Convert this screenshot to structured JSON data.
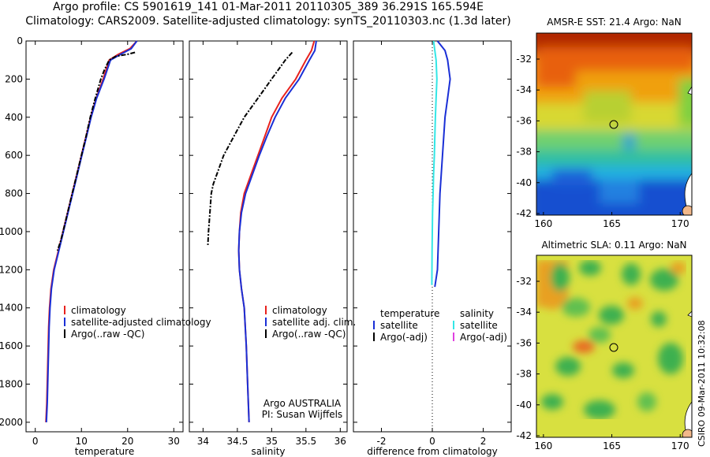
{
  "header": {
    "line1": "Argo profile: CS 5901619_141 01-Mar-2011 20110305_389 36.291S 165.594E",
    "line2": "Climatology: CARS2009. Satellite-adjusted climatology: synTS_20110303.nc (1.3d later)"
  },
  "credit": "CSIRO 09-Mar-2011 10:32:08",
  "colors": {
    "climatology": "#e8221e",
    "satellite": "#1a2fd6",
    "argo": "#000000",
    "sat_salinity": "#33e6e6",
    "argo_adj_sal": "#e040e0"
  },
  "chart_data": [
    {
      "type": "line",
      "xlabel": "temperature",
      "xticks": [
        0,
        10,
        20,
        30
      ],
      "yticks": [
        0,
        200,
        400,
        600,
        800,
        1000,
        1200,
        1400,
        1600,
        1800,
        2000
      ],
      "xlim": [
        -2,
        32
      ],
      "ylim": [
        0,
        2050
      ],
      "y_reversed": true,
      "legend": [
        "climatology",
        "satellite-adjusted climatology",
        "Argo(..raw -QC)"
      ],
      "series": [
        {
          "name": "climatology",
          "x": [
            22,
            20.5,
            18,
            16,
            14.7,
            13.2,
            12,
            11,
            10,
            9,
            7.5,
            6,
            5,
            4,
            3.4,
            3.1,
            2.9,
            2.7,
            2.5,
            2.3
          ],
          "y": [
            0,
            40,
            70,
            100,
            200,
            300,
            400,
            500,
            600,
            700,
            850,
            1000,
            1100,
            1200,
            1300,
            1400,
            1500,
            1700,
            1900,
            2000
          ]
        },
        {
          "name": "satellite-adjusted climatology",
          "x": [
            22,
            20.8,
            18.5,
            16.3,
            14.9,
            13.3,
            12.1,
            11.1,
            10.1,
            9.1,
            7.6,
            6.1,
            5.1,
            4.1,
            3.5,
            3.2,
            3.0,
            2.8,
            2.6,
            2.4
          ],
          "y": [
            0,
            40,
            70,
            100,
            200,
            300,
            400,
            500,
            600,
            700,
            850,
            1000,
            1100,
            1200,
            1300,
            1400,
            1500,
            1700,
            1900,
            2000
          ]
        },
        {
          "name": "Argo(..raw -QC)",
          "x": [
            21.6,
            20,
            17.5,
            16,
            15,
            14.2,
            13,
            11.9,
            11,
            10,
            9,
            8,
            7.5,
            6.5,
            5.5,
            4.8
          ],
          "y": [
            60,
            70,
            80,
            100,
            150,
            200,
            300,
            400,
            500,
            600,
            700,
            800,
            850,
            950,
            1050,
            1100
          ]
        }
      ]
    },
    {
      "type": "line",
      "xlabel": "salinity",
      "xticks": [
        34,
        34.5,
        35,
        35.5,
        36
      ],
      "xlim": [
        33.8,
        36.1
      ],
      "ylim": [
        0,
        2050
      ],
      "y_reversed": true,
      "legend": [
        "climatology",
        "satellite adj. clim.",
        "Argo(..raw -QC)"
      ],
      "annotation": [
        "Argo AUSTRALIA",
        "PI: Susan Wijffels"
      ],
      "series": [
        {
          "name": "climatology",
          "x": [
            35.62,
            35.58,
            35.5,
            35.35,
            35.15,
            35.0,
            34.9,
            34.8,
            34.7,
            34.6,
            34.55,
            34.53,
            34.52,
            34.53,
            34.56,
            34.6,
            34.63,
            34.65,
            34.67
          ],
          "y": [
            0,
            50,
            100,
            200,
            300,
            400,
            500,
            600,
            700,
            800,
            900,
            1000,
            1100,
            1200,
            1300,
            1400,
            1600,
            1800,
            2000
          ]
        },
        {
          "name": "satellite adj. clim.",
          "x": [
            35.65,
            35.63,
            35.55,
            35.4,
            35.2,
            35.05,
            34.93,
            34.82,
            34.72,
            34.62,
            34.56,
            34.53,
            34.52,
            34.53,
            34.56,
            34.6,
            34.63,
            34.65,
            34.67
          ],
          "y": [
            0,
            50,
            100,
            200,
            300,
            400,
            500,
            600,
            700,
            800,
            900,
            1000,
            1100,
            1200,
            1300,
            1400,
            1600,
            1800,
            2000
          ]
        },
        {
          "name": "Argo(..raw -QC)",
          "x": [
            35.3,
            35.2,
            35.0,
            34.8,
            34.6,
            34.45,
            34.3,
            34.2,
            34.15,
            34.12,
            34.1,
            34.08,
            34.07
          ],
          "y": [
            60,
            100,
            200,
            300,
            400,
            500,
            600,
            700,
            750,
            800,
            900,
            1000,
            1070
          ]
        }
      ]
    },
    {
      "type": "line",
      "xlabel": "difference from climatology",
      "xticks": [
        -2,
        0,
        2
      ],
      "xlim": [
        -3.1,
        3.1
      ],
      "ylim": [
        0,
        2050
      ],
      "y_reversed": true,
      "legend_temperature": [
        "temperature",
        "satellite",
        "Argo(-adj)"
      ],
      "legend_salinity": [
        "salinity",
        "satellite",
        "Argo(-adj)"
      ],
      "series": [
        {
          "name": "satellite",
          "x": [
            0.2,
            0.5,
            0.6,
            0.7,
            0.6,
            0.5,
            0.45,
            0.4,
            0.35,
            0.3,
            0.25,
            0.2,
            0.1
          ],
          "y": [
            0,
            50,
            100,
            200,
            300,
            400,
            500,
            600,
            700,
            800,
            1000,
            1200,
            1290
          ]
        },
        {
          "name": "satellite",
          "x": [
            0.05,
            0.15,
            0.18,
            0.15,
            0.12,
            0.1,
            0.08,
            0.05,
            0.03,
            0.01,
            -0.01,
            -0.02
          ],
          "y": [
            0,
            100,
            200,
            300,
            400,
            500,
            600,
            700,
            800,
            900,
            1100,
            1280
          ]
        }
      ]
    }
  ],
  "maps": [
    {
      "title": "AMSR-E SST: 21.4  Argo: NaN",
      "xticks": [
        "160",
        "165",
        "170"
      ],
      "yticks": [
        "-32",
        "-34",
        "-36",
        "-38",
        "-40",
        "-42"
      ]
    },
    {
      "title": "Altimetric SLA: 0.11  Argo: NaN",
      "xticks": [
        "160",
        "165",
        "170"
      ],
      "yticks": [
        "-32",
        "-34",
        "-36",
        "-38",
        "-40",
        "-42"
      ]
    }
  ]
}
